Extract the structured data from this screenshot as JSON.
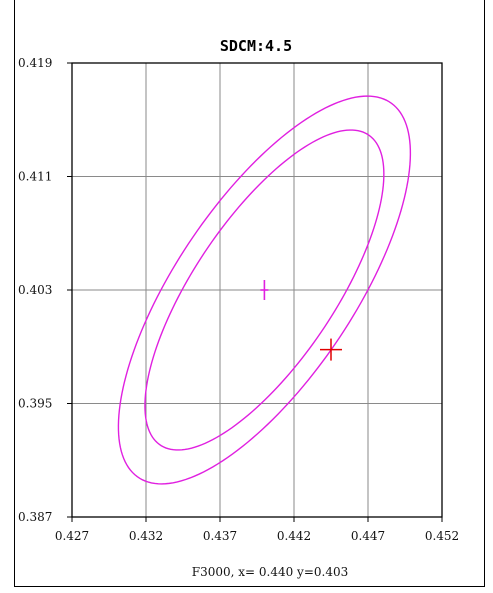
{
  "chart_data": {
    "type": "scatter",
    "title": "SDCM:4.5",
    "caption": "F3000, x= 0.440 y=0.403",
    "xlim": [
      0.427,
      0.452
    ],
    "ylim": [
      0.387,
      0.419
    ],
    "x_ticks": [
      "0.427",
      "0.432",
      "0.437",
      "0.442",
      "0.447",
      "0.452"
    ],
    "y_ticks": [
      "0.419",
      "0.411",
      "0.403",
      "0.395",
      "0.387"
    ],
    "grid": true,
    "center_marker": {
      "x": 0.44,
      "y": 0.403,
      "color": "#e020e0"
    },
    "measured_marker": {
      "x": 0.4445,
      "y": 0.3988,
      "color": "#e00000"
    },
    "ellipses": [
      {
        "name": "",
        "color": "#e020e0",
        "cx": 0.44,
        "cy": 0.403,
        "semi_major": 0.01572,
        "semi_minor": 0.00608,
        "angle_deg": 57.6
      },
      {
        "name": "",
        "color": "#e020e0",
        "cx": 0.44,
        "cy": 0.403,
        "semi_major": 0.013,
        "semi_minor": 0.00483,
        "angle_deg": 57.6
      }
    ]
  }
}
